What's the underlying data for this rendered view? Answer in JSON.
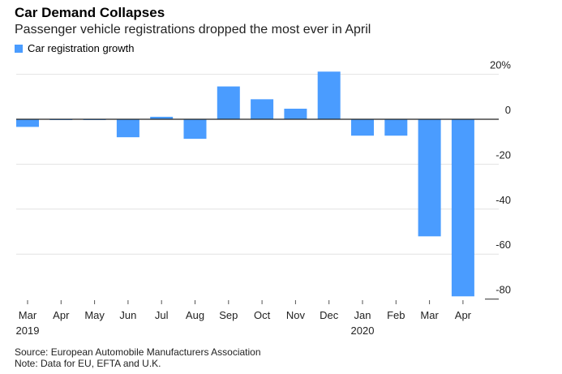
{
  "chart_data": {
    "type": "bar",
    "title": "Car Demand Collapses",
    "subtitle": "Passenger vehicle registrations dropped the most ever in April",
    "legend": [
      "Car registration growth"
    ],
    "legend_position": "top-left",
    "categories": [
      "Mar",
      "Apr",
      "May",
      "Jun",
      "Jul",
      "Aug",
      "Sep",
      "Oct",
      "Nov",
      "Dec",
      "Jan",
      "Feb",
      "Mar",
      "Apr"
    ],
    "year_labels": {
      "0": "2019",
      "10": "2020"
    },
    "series": [
      {
        "name": "Car registration growth",
        "values": [
          -3.4,
          -0.3,
          -0.3,
          -8,
          1.1,
          -8.7,
          14.6,
          8.9,
          4.7,
          21.2,
          -7.3,
          -7.3,
          -52.1,
          -78.8
        ]
      }
    ],
    "yticks": [
      "20%",
      "0",
      "-20",
      "-40",
      "-60",
      "-80"
    ],
    "ytick_values": [
      20,
      0,
      -20,
      -40,
      -60,
      -80
    ],
    "ylim": [
      -80,
      20
    ],
    "y_axis_side": "right",
    "grid": true,
    "color": "#4a9cff",
    "source": "Source: European Automobile Manufacturers Association",
    "note": "Note: Data for EU, EFTA and U.K."
  }
}
